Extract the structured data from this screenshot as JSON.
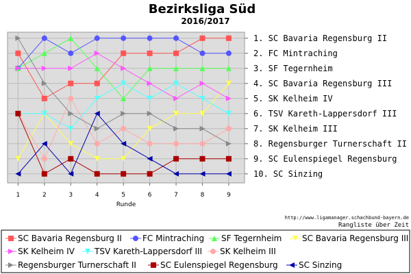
{
  "chart_data": {
    "type": "line",
    "title": "Bezirksliga Süd",
    "subtitle": "2016/2017",
    "xlabel": "Runde",
    "ylabel": "",
    "x": [
      1,
      2,
      3,
      4,
      5,
      6,
      7,
      8,
      9
    ],
    "xlim": [
      0.6,
      9.6
    ],
    "ylim": [
      10.6,
      0.6
    ],
    "y_inverted": true,
    "grid": true,
    "legend_position": "bottom",
    "right_labels": [
      "1.  SC Bavaria Regensburg II",
      "2.  FC Mintraching",
      "3.  SF Tegernheim",
      "4.  SC Bavaria Regensburg III",
      "5.  SK Kelheim IV",
      "6.  TSV Kareth-Lappersdorf III",
      "7.  SK Kelheim III",
      "8.  Regensburger Turnerschaft II",
      "9.  SC Eulenspiegel Regensburg",
      "10. SC Sinzing"
    ],
    "credit_url": "http://www.ligamanager.schachbund-bayern.de",
    "credit_text": "Rangliste über Zeit",
    "series": [
      {
        "name": "SC Bavaria Regensburg II",
        "color": "#ff5555",
        "marker": "square",
        "values": [
          2,
          5,
          4,
          4,
          2,
          2,
          2,
          1,
          1
        ]
      },
      {
        "name": "FC Mintraching",
        "color": "#5555ff",
        "marker": "circle",
        "values": [
          3,
          1,
          2,
          1,
          1,
          1,
          1,
          2,
          2
        ]
      },
      {
        "name": "SF Tegernheim",
        "color": "#55ff55",
        "marker": "triangle-up",
        "values": [
          3,
          2,
          1,
          3,
          5,
          3,
          3,
          3,
          3
        ]
      },
      {
        "name": "SC Bavaria Regensburg III",
        "color": "#ffff55",
        "marker": "triangle-down",
        "values": [
          9,
          6,
          8,
          9,
          9,
          7,
          6,
          6,
          4
        ]
      },
      {
        "name": "SK Kelheim IV",
        "color": "#ff55ff",
        "marker": "triangle-right",
        "values": [
          3,
          3,
          3,
          2,
          3,
          4,
          5,
          4,
          5
        ]
      },
      {
        "name": "TSV Kareth-Lappersdorf III",
        "color": "#55ffff",
        "marker": "triangle-down",
        "values": [
          6,
          6,
          7,
          5,
          4,
          5,
          4,
          5,
          6
        ]
      },
      {
        "name": "SK Kelheim III",
        "color": "#ffaaaa",
        "marker": "circle",
        "values": [
          6,
          9,
          5,
          8,
          7,
          8,
          8,
          8,
          7
        ]
      },
      {
        "name": "Regensburger Turnerschaft II",
        "color": "#888888",
        "marker": "triangle-right",
        "values": [
          1,
          4,
          6,
          7,
          6,
          6,
          7,
          7,
          8
        ]
      },
      {
        "name": "SC Eulenspiegel Regensburg",
        "color": "#aa0000",
        "marker": "square",
        "values": [
          6,
          10,
          9,
          10,
          10,
          10,
          9,
          9,
          9
        ]
      },
      {
        "name": "SC Sinzing",
        "color": "#0000aa",
        "marker": "triangle-left",
        "values": [
          10,
          8,
          10,
          6,
          8,
          9,
          10,
          10,
          10
        ]
      }
    ]
  }
}
